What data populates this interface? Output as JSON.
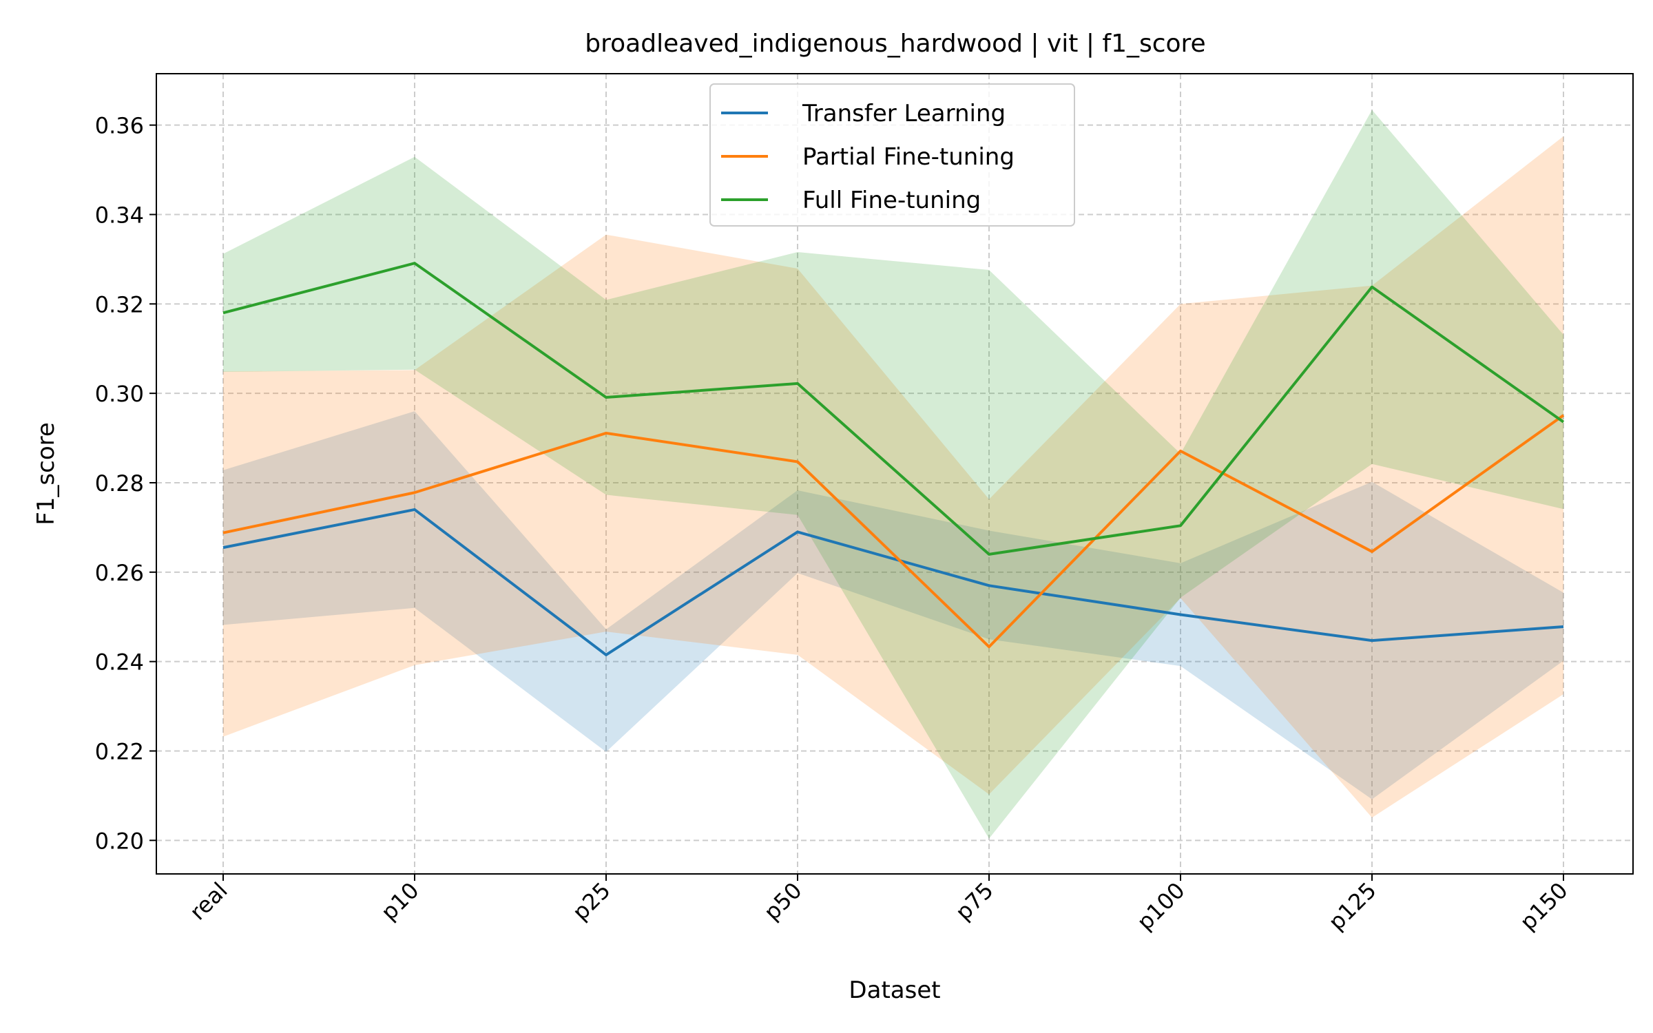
{
  "chart_data": {
    "type": "line",
    "title": "broadleaved_indigenous_hardwood | vit | f1_score",
    "xlabel": "Dataset",
    "ylabel": "F1_score",
    "categories": [
      "real",
      "p10",
      "p25",
      "p50",
      "p75",
      "p100",
      "p125",
      "p150"
    ],
    "ylim": [
      0.1925,
      0.3715
    ],
    "yticks": [
      0.2,
      0.22,
      0.24,
      0.26,
      0.28,
      0.3,
      0.32,
      0.34,
      0.36
    ],
    "ytick_labels": [
      "0.20",
      "0.22",
      "0.24",
      "0.26",
      "0.28",
      "0.30",
      "0.32",
      "0.34",
      "0.36"
    ],
    "grid": true,
    "legend_position": "top-center",
    "series": [
      {
        "name": "Transfer Learning",
        "color": "#1f77b4",
        "values": [
          0.2655,
          0.274,
          0.2415,
          0.269,
          0.257,
          0.2505,
          0.2447,
          0.2478
        ],
        "lower": [
          0.2482,
          0.252,
          0.2198,
          0.2598,
          0.245,
          0.239,
          0.2092,
          0.2402
        ],
        "upper": [
          0.2828,
          0.296,
          0.2472,
          0.2783,
          0.2693,
          0.262,
          0.2802,
          0.2554
        ]
      },
      {
        "name": "Partial Fine-tuning",
        "color": "#ff7f0e",
        "values": [
          0.2688,
          0.2778,
          0.2911,
          0.2847,
          0.2433,
          0.2871,
          0.2646,
          0.2951
        ],
        "lower": [
          0.2232,
          0.2392,
          0.2467,
          0.2415,
          0.2103,
          0.2542,
          0.2051,
          0.2327
        ],
        "upper": [
          0.3049,
          0.3052,
          0.3355,
          0.3279,
          0.2763,
          0.32,
          0.3241,
          0.3575
        ]
      },
      {
        "name": "Full Fine-tuning",
        "color": "#2ca02c",
        "values": [
          0.318,
          0.3291,
          0.2991,
          0.3022,
          0.264,
          0.2704,
          0.3238,
          0.2936
        ],
        "lower": [
          0.3048,
          0.3053,
          0.2773,
          0.2728,
          0.2004,
          0.2543,
          0.2842,
          0.2741
        ],
        "upper": [
          0.3312,
          0.3529,
          0.3209,
          0.3316,
          0.3276,
          0.2865,
          0.3634,
          0.3131
        ]
      }
    ]
  }
}
